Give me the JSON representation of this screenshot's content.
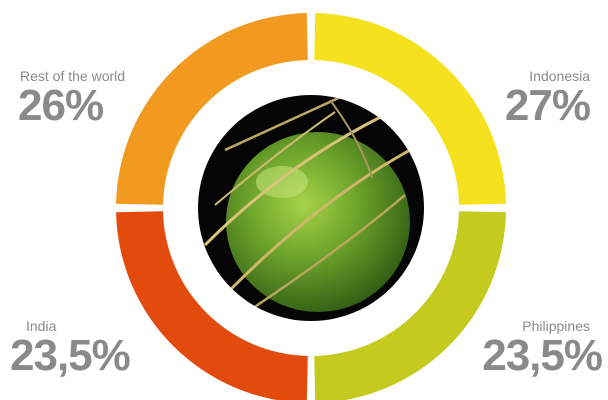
{
  "chart_data": {
    "type": "pie",
    "categories": [
      "Indonesia",
      "Philippines",
      "India",
      "Rest of the world"
    ],
    "values": [
      27,
      23.5,
      23.5,
      26
    ],
    "value_labels": [
      "27%",
      "23,5%",
      "23,5%",
      "26%"
    ],
    "colors": [
      "#f5e11e",
      "#c5ca1f",
      "#e24b0d",
      "#f29a20"
    ],
    "style": "donut with coconut photo in center"
  }
}
